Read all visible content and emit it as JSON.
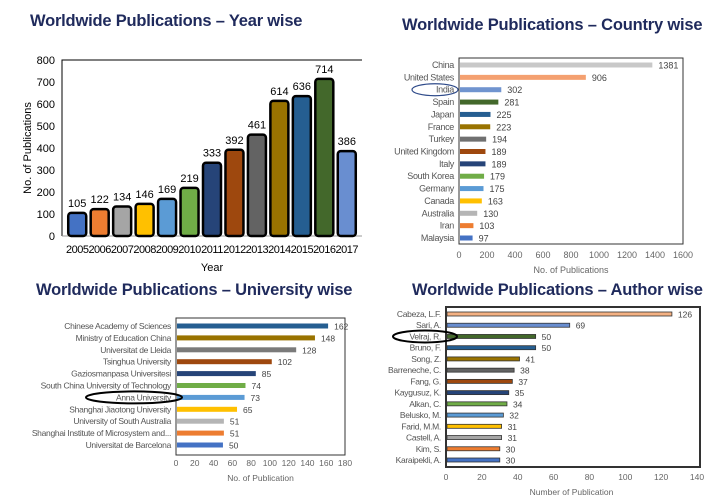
{
  "chart_data": [
    {
      "type": "bar",
      "title": "Worldwide Publications – Year wise",
      "xlabel": "Year",
      "ylabel": "No. of Publications",
      "ylim": [
        0,
        800
      ],
      "yticks": [
        0,
        100,
        200,
        300,
        400,
        500,
        600,
        700,
        800
      ],
      "categories": [
        "2005",
        "2006",
        "2007",
        "2008",
        "2009",
        "2010",
        "2011",
        "2012",
        "2013",
        "2014",
        "2015",
        "2016",
        "2017"
      ],
      "values": [
        105,
        122,
        134,
        146,
        169,
        219,
        333,
        392,
        461,
        614,
        636,
        714,
        386
      ],
      "colors": [
        "#4472c4",
        "#ed7d31",
        "#a5a5a5",
        "#ffc000",
        "#5b9bd5",
        "#70ad47",
        "#264478",
        "#9e480e",
        "#636363",
        "#997300",
        "#255e91",
        "#43682b",
        "#698ed0"
      ]
    },
    {
      "type": "bar",
      "orientation": "horizontal",
      "title": "Worldwide Publications – Country wise",
      "xlabel": "No. of Publications",
      "xlim": [
        0,
        1600
      ],
      "xticks": [
        0,
        200,
        400,
        600,
        800,
        1000,
        1200,
        1400,
        1600
      ],
      "categories": [
        "China",
        "United States",
        "India",
        "Spain",
        "Japan",
        "France",
        "Turkey",
        "United Kingdom",
        "Italy",
        "South Korea",
        "Germany",
        "Canada",
        "Australia",
        "Iran",
        "Malaysia"
      ],
      "values": [
        1381,
        906,
        302,
        281,
        225,
        223,
        194,
        189,
        189,
        179,
        175,
        163,
        130,
        103,
        97
      ],
      "colors": [
        "#c8c8c8",
        "#f4a070",
        "#7094cf",
        "#43682b",
        "#255e91",
        "#997300",
        "#707070",
        "#9e480e",
        "#264478",
        "#70ad47",
        "#5b9bd5",
        "#ffc000",
        "#b5b5b5",
        "#ed7d31",
        "#4472c4"
      ],
      "highlight": "India"
    },
    {
      "type": "bar",
      "orientation": "horizontal",
      "title": "Worldwide Publications – University wise",
      "xlabel": "No. of Publication",
      "xlim": [
        0,
        180
      ],
      "xticks": [
        0,
        20,
        40,
        60,
        80,
        100,
        120,
        140,
        160,
        180
      ],
      "categories": [
        "Chinese Academy of Sciences",
        "Ministry of Education China",
        "Universitat de Lleida",
        "Tsinghua University",
        "Gaziosmanpasa Universitesi",
        "South China University of Technology",
        "Anna University",
        "Shanghai Jiaotong University",
        "University of South Australia",
        "Shanghai Institute of Microsystem and...",
        "Universitat de Barcelona"
      ],
      "values": [
        162,
        148,
        128,
        102,
        85,
        74,
        73,
        65,
        51,
        51,
        50
      ],
      "colors": [
        "#255e91",
        "#997300",
        "#7a7a7a",
        "#9e480e",
        "#264478",
        "#70ad47",
        "#5b9bd5",
        "#ffc000",
        "#b5b5b5",
        "#ed7d31",
        "#4472c4"
      ],
      "highlight": "Anna University"
    },
    {
      "type": "bar",
      "orientation": "horizontal",
      "title": "Worldwide Publications – Author wise",
      "xlabel": "Number of Publication",
      "xlim": [
        0,
        140
      ],
      "xticks": [
        0,
        20,
        40,
        60,
        80,
        100,
        120,
        140
      ],
      "categories": [
        "Cabeza, L.F.",
        "Sari, A.",
        "Velraj, R.",
        "Bruno, F.",
        "Song, Z.",
        "Barreneche, C.",
        "Fang, G.",
        "Kaygusuz, K.",
        "Alkan, C.",
        "Belusko, M.",
        "Farid, M.M.",
        "Castell, A.",
        "Kim, S.",
        "Karaipekli, A."
      ],
      "values": [
        126,
        69,
        50,
        50,
        41,
        38,
        37,
        35,
        34,
        32,
        31,
        31,
        30,
        30
      ],
      "colors": [
        "#f4b183",
        "#698ed0",
        "#43682b",
        "#255e91",
        "#997300",
        "#636363",
        "#9e480e",
        "#264478",
        "#70ad47",
        "#5b9bd5",
        "#ffc000",
        "#a5a5a5",
        "#ed7d31",
        "#4472c4"
      ],
      "highlight": "Velraj, R."
    }
  ]
}
